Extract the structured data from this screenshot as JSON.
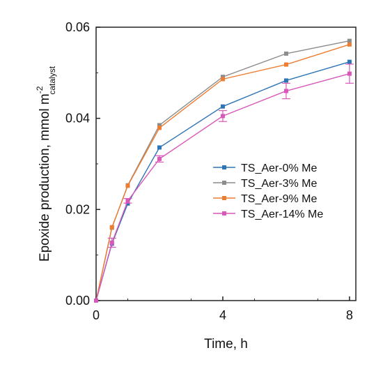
{
  "chart_data": {
    "type": "line",
    "xlabel": "Time, h",
    "ylabel_main": "Epoxide production, mmol m",
    "ylabel_sup": "-2",
    "ylabel_sub": "catalyst",
    "xlim": [
      0,
      8.2
    ],
    "ylim": [
      0,
      0.06
    ],
    "x_ticks": [
      0,
      4,
      8
    ],
    "x_tick_labels": [
      "0",
      "4",
      "8"
    ],
    "y_ticks": [
      0,
      0.02,
      0.04,
      0.06
    ],
    "y_tick_labels": [
      "0.00",
      "0.02",
      "0.04",
      "0.06"
    ],
    "grid": false,
    "legend_position": "center-right",
    "x": [
      0,
      0.5,
      1,
      2,
      4,
      6,
      8
    ],
    "series": [
      {
        "name": "TS_Aer-0% Me",
        "color": "#2e75b6",
        "values": [
          0,
          0.0125,
          0.0213,
          0.0336,
          0.0426,
          0.0483,
          0.0524
        ]
      },
      {
        "name": "TS_Aer-3% Me",
        "color": "#8c8c8c",
        "values": [
          0,
          0.016,
          0.0253,
          0.0385,
          0.0491,
          0.0542,
          0.057
        ]
      },
      {
        "name": "TS_Aer-9% Me",
        "color": "#ed7d31",
        "values": [
          0,
          0.0161,
          0.0252,
          0.0379,
          0.0486,
          0.0518,
          0.0562
        ]
      },
      {
        "name": "TS_Aer-14% Me",
        "color": "#d957b8",
        "values": [
          0,
          0.0127,
          0.0219,
          0.0311,
          0.0405,
          0.046,
          0.0498
        ],
        "error": [
          0,
          0.001,
          0.0005,
          0.0007,
          0.0012,
          0.0017,
          0.0021
        ]
      }
    ]
  }
}
